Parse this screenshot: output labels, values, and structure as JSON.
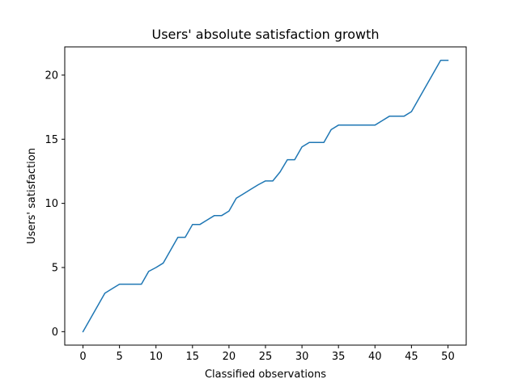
{
  "chart_data": {
    "type": "line",
    "title": "Users' absolute satisfaction growth",
    "xlabel": "Classified observations",
    "ylabel": "Users' satisfaction",
    "xlim": [
      -2.5,
      52.5
    ],
    "ylim": [
      -1.05,
      22.2
    ],
    "xticks": [
      0,
      5,
      10,
      15,
      20,
      25,
      30,
      35,
      40,
      45,
      50
    ],
    "yticks": [
      0,
      5,
      10,
      15,
      20
    ],
    "grid": false,
    "legend": "none",
    "series": [
      {
        "color": "#1f77b4",
        "x": [
          0,
          1,
          2,
          3,
          4,
          5,
          6,
          7,
          8,
          9,
          10,
          11,
          12,
          13,
          14,
          15,
          16,
          17,
          18,
          19,
          20,
          21,
          22,
          23,
          24,
          25,
          26,
          27,
          28,
          29,
          30,
          31,
          32,
          33,
          34,
          35,
          36,
          37,
          38,
          39,
          40,
          41,
          42,
          43,
          44,
          45,
          46,
          47,
          48,
          49,
          50
        ],
        "y": [
          0,
          1.0,
          2.0,
          3.0,
          3.35,
          3.7,
          3.7,
          3.7,
          3.7,
          4.7,
          5.0,
          5.35,
          6.35,
          7.35,
          7.35,
          8.35,
          8.35,
          8.7,
          9.05,
          9.05,
          9.4,
          10.4,
          10.75,
          11.1,
          11.45,
          11.75,
          11.75,
          12.45,
          13.4,
          13.4,
          14.4,
          14.75,
          14.75,
          14.75,
          15.75,
          16.1,
          16.1,
          16.1,
          16.1,
          16.1,
          16.1,
          16.45,
          16.8,
          16.8,
          16.8,
          17.15,
          18.15,
          19.15,
          20.15,
          21.15,
          21.15
        ]
      }
    ]
  }
}
